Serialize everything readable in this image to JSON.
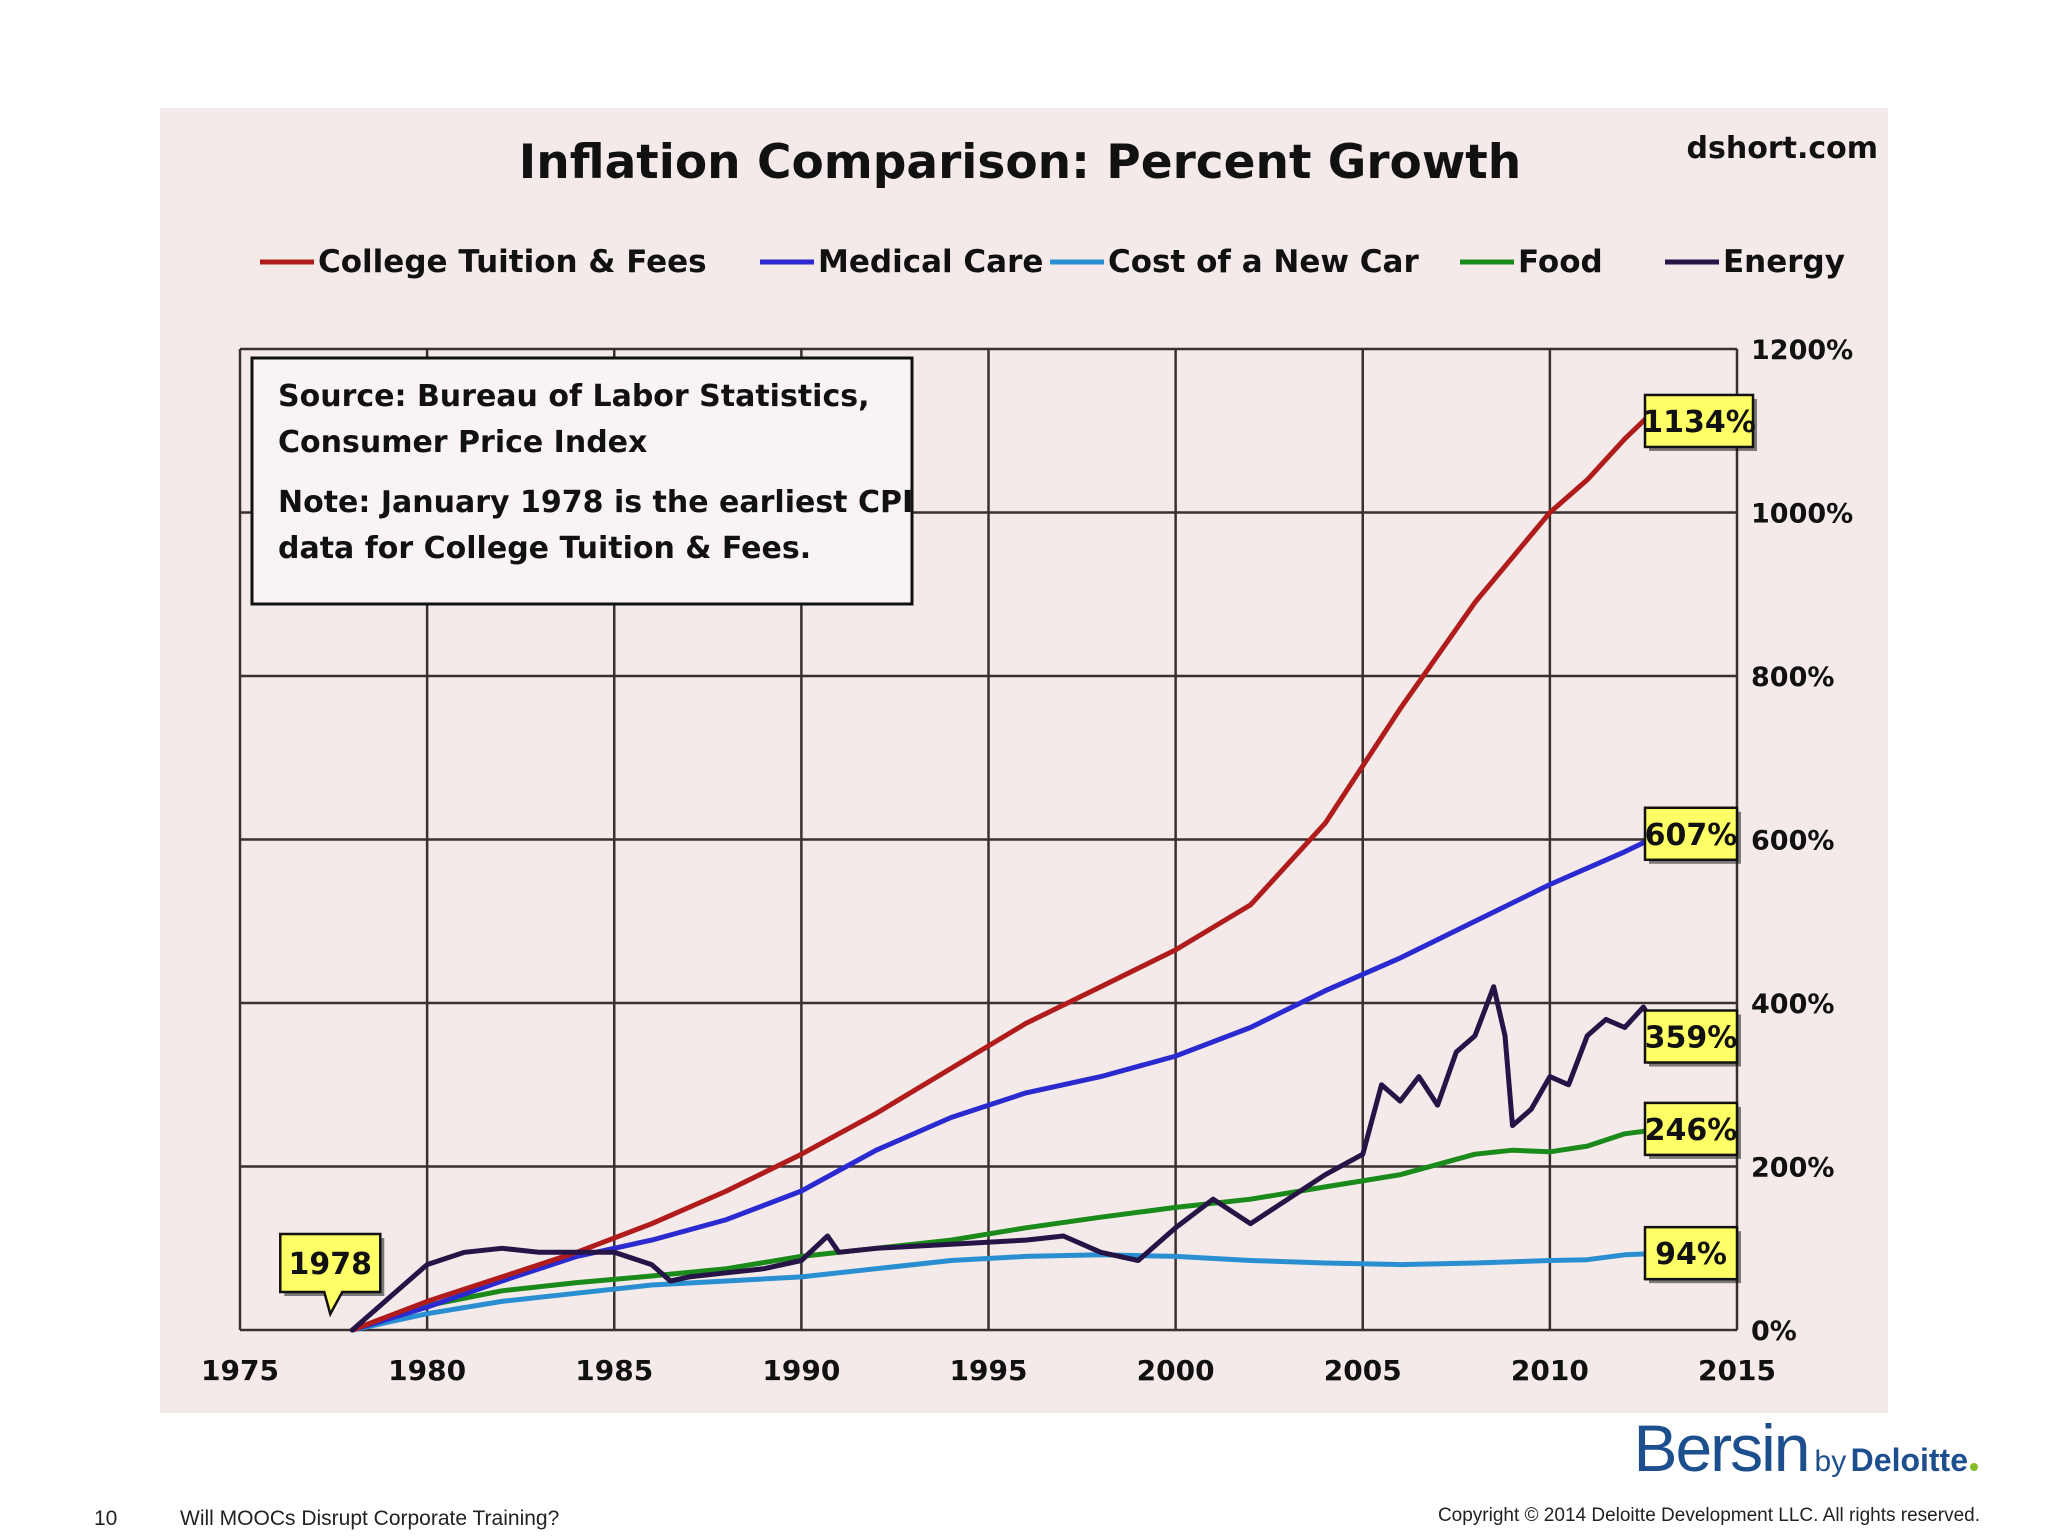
{
  "slide": {
    "page_number": "10",
    "title": "Will MOOCs Disrupt Corporate Training?",
    "copyright": "Copyright © 2014 Deloitte Development LLC. All rights reserved.",
    "brand": {
      "bersin": "Bersin",
      "by": "by",
      "deloitte": "Deloitte"
    }
  },
  "colors": {
    "college": "#b01c1c",
    "medical": "#2a2ad0",
    "car": "#2a8fd0",
    "food": "#1a8a1a",
    "energy": "#261446",
    "callout_fill": "#ffff66"
  },
  "chart_data": {
    "type": "line",
    "title": "Inflation Comparison: Percent Growth",
    "watermark": "dshort.com",
    "xlim": [
      1975,
      2015
    ],
    "ylim": [
      0,
      1200
    ],
    "x_ticks": [
      1975,
      1980,
      1985,
      1990,
      1995,
      2000,
      2005,
      2010,
      2015
    ],
    "x_tick_labels": [
      "1975",
      "1980",
      "1985",
      "1990",
      "1995",
      "2000",
      "2005",
      "2010",
      "2015"
    ],
    "y_ticks": [
      0,
      200,
      400,
      600,
      800,
      1000,
      1200
    ],
    "y_tick_labels": [
      "0%",
      "200%",
      "400%",
      "600%",
      "800%",
      "1000%",
      "1200%"
    ],
    "y_axis_side": "right",
    "grid": true,
    "legend_position": "top",
    "note_lines": [
      "Source: Bureau of Labor Statistics,",
      "Consumer Price Index",
      "Note: January 1978  is the earliest CPI",
      "data for College Tuition & Fees."
    ],
    "start_callout": {
      "label": "1978",
      "x": 1978,
      "y": 0
    },
    "series": [
      {
        "name": "College Tuition & Fees",
        "color_key": "college",
        "end_label": "1134%",
        "x": [
          1978,
          1980,
          1982,
          1984,
          1986,
          1988,
          1990,
          1991,
          1992,
          1994,
          1996,
          1998,
          2000,
          2002,
          2004,
          2006,
          2008,
          2010,
          2011,
          2012,
          2013
        ],
        "y": [
          0,
          35,
          65,
          95,
          130,
          170,
          215,
          240,
          265,
          320,
          375,
          420,
          465,
          520,
          620,
          760,
          890,
          1000,
          1040,
          1090,
          1134
        ]
      },
      {
        "name": "Medical Care",
        "color_key": "medical",
        "end_label": "607%",
        "x": [
          1978,
          1980,
          1982,
          1984,
          1986,
          1988,
          1990,
          1992,
          1994,
          1996,
          1998,
          2000,
          2002,
          2004,
          2006,
          2008,
          2010,
          2012,
          2013
        ],
        "y": [
          0,
          28,
          60,
          90,
          110,
          135,
          170,
          220,
          260,
          290,
          310,
          335,
          370,
          415,
          455,
          500,
          545,
          585,
          607
        ]
      },
      {
        "name": "Cost of a New Car",
        "color_key": "car",
        "end_label": "94%",
        "x": [
          1978,
          1980,
          1982,
          1984,
          1986,
          1988,
          1990,
          1992,
          1994,
          1996,
          1998,
          2000,
          2002,
          2004,
          2006,
          2008,
          2010,
          2011,
          2012,
          2013
        ],
        "y": [
          0,
          20,
          35,
          45,
          55,
          60,
          65,
          75,
          85,
          90,
          92,
          90,
          85,
          82,
          80,
          82,
          85,
          86,
          92,
          94
        ]
      },
      {
        "name": "Food",
        "color_key": "food",
        "end_label": "246%",
        "x": [
          1978,
          1980,
          1982,
          1984,
          1986,
          1988,
          1990,
          1992,
          1994,
          1996,
          1998,
          2000,
          2002,
          2004,
          2006,
          2008,
          2009,
          2010,
          2011,
          2012,
          2013
        ],
        "y": [
          0,
          30,
          48,
          58,
          66,
          75,
          90,
          100,
          110,
          125,
          138,
          150,
          160,
          175,
          190,
          215,
          220,
          218,
          225,
          240,
          246
        ]
      },
      {
        "name": "Energy",
        "color_key": "energy",
        "end_label": "359%",
        "x": [
          1978,
          1979,
          1980,
          1981,
          1982,
          1983,
          1984,
          1985,
          1986,
          1986.5,
          1987,
          1988,
          1989,
          1990,
          1990.7,
          1991,
          1992,
          1994,
          1996,
          1997,
          1998,
          1999,
          2000,
          2001,
          2002,
          2003,
          2004,
          2005,
          2005.5,
          2006,
          2006.5,
          2007,
          2007.5,
          2008,
          2008.5,
          2008.8,
          2009,
          2009.5,
          2010,
          2010.5,
          2011,
          2011.5,
          2012,
          2012.5,
          2013
        ],
        "y": [
          0,
          40,
          80,
          95,
          100,
          95,
          95,
          95,
          80,
          60,
          65,
          70,
          75,
          85,
          115,
          95,
          100,
          105,
          110,
          115,
          95,
          85,
          125,
          160,
          130,
          160,
          190,
          215,
          300,
          280,
          310,
          275,
          340,
          360,
          420,
          360,
          250,
          270,
          310,
          300,
          360,
          380,
          370,
          395,
          359
        ]
      }
    ]
  }
}
